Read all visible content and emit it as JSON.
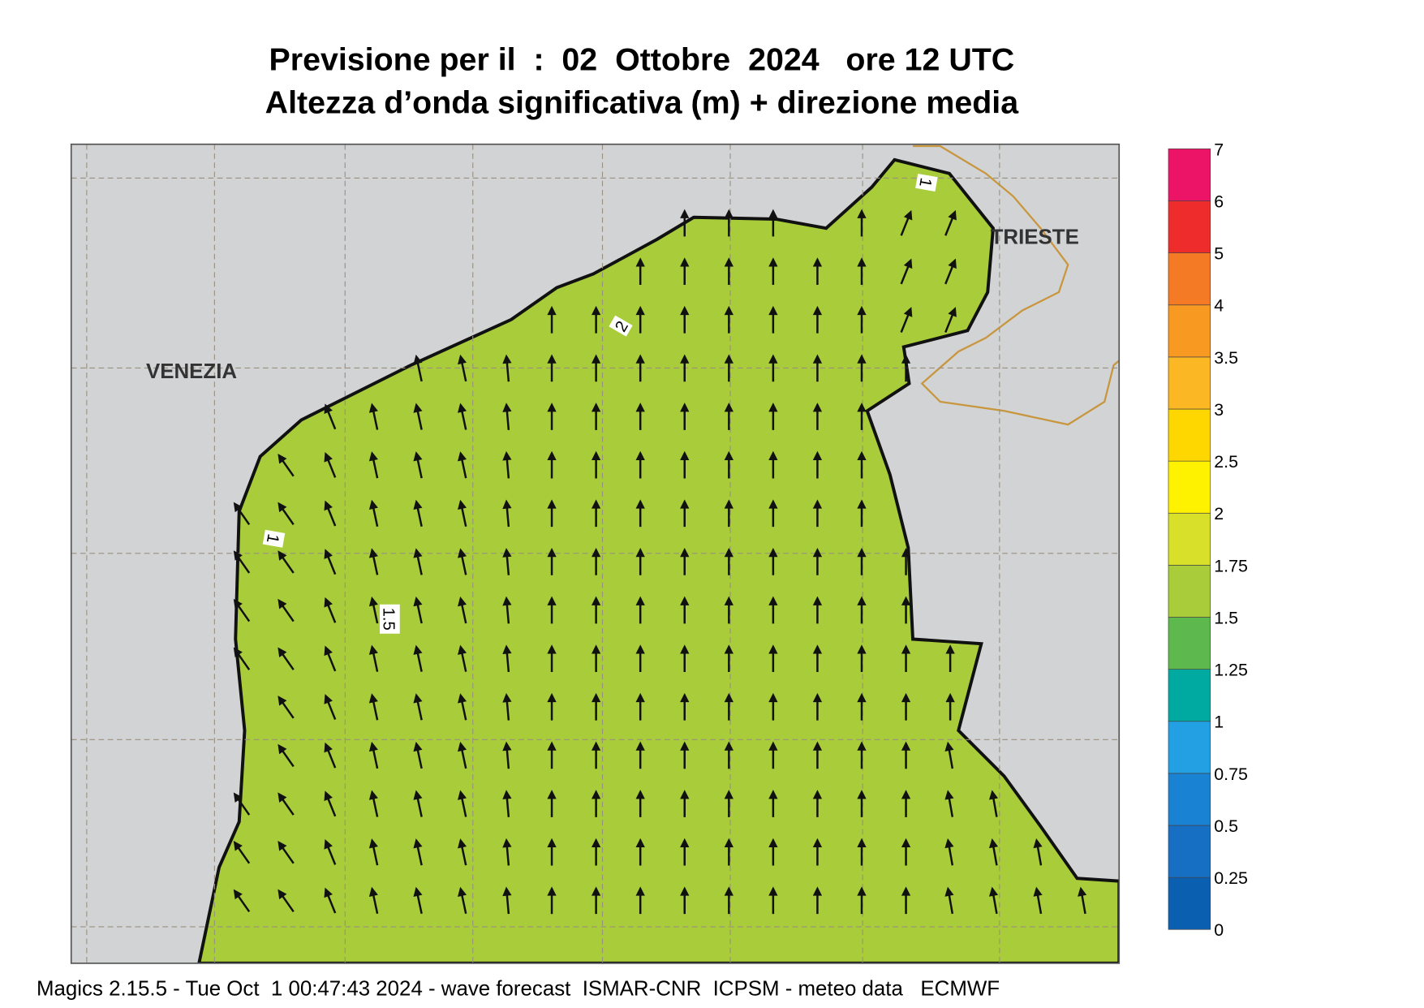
{
  "header": {
    "title": "Previsione per il  :  02  Ottobre  2024   ore 12 UTC",
    "subtitle": "Altezza d’onda significativa (m) + direzione media"
  },
  "map": {
    "place_labels": [
      "VENEZIA",
      "TRIESTE"
    ],
    "contour_labels": [
      "1",
      "1.5",
      "2",
      "1"
    ]
  },
  "colorbar": {
    "levels": [
      0,
      0.25,
      0.5,
      0.75,
      1,
      1.25,
      1.5,
      1.75,
      2,
      2.5,
      3,
      3.5,
      4,
      5,
      6,
      7
    ],
    "colors": [
      "#0a5fb0",
      "#176fc3",
      "#1a82d3",
      "#22a0e3",
      "#00aaa0",
      "#5db84e",
      "#a8cc3a",
      "#d8e02a",
      "#fff200",
      "#ffd700",
      "#fbb724",
      "#f89a22",
      "#f47a25",
      "#ee2c2c",
      "#ec1466"
    ]
  },
  "footer": "Magics 2.15.5 - Tue Oct  1 00:47:43 2024 - wave forecast  ISMAR-CNR  ICPSM - meteo data   ECMWF"
}
